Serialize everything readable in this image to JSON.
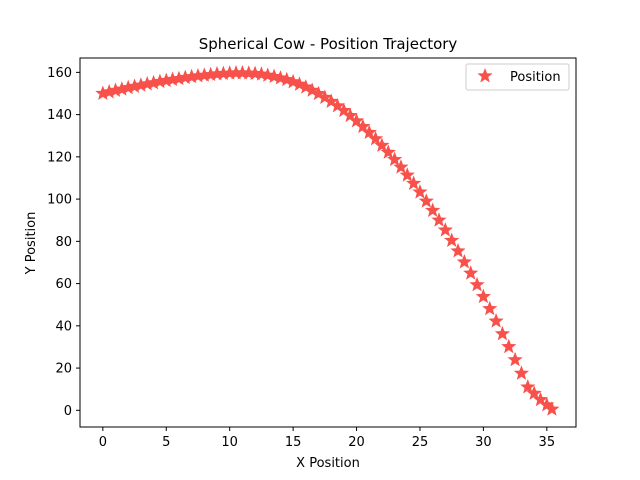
{
  "chart_data": {
    "type": "scatter",
    "title": "Spherical Cow - Position Trajectory",
    "xlabel": "X Position",
    "ylabel": "Y Position",
    "xlim": [
      -1.8,
      37.3
    ],
    "ylim": [
      -7.9,
      166.8
    ],
    "xticks": [
      0,
      5,
      10,
      15,
      20,
      25,
      30,
      35
    ],
    "yticks": [
      0,
      20,
      40,
      60,
      80,
      100,
      120,
      140,
      160
    ],
    "grid": false,
    "legend_position": "top-right",
    "marker": "star",
    "series": [
      {
        "name": "Position",
        "color": "#f8514b",
        "points": [
          [
            0.0,
            150.0
          ],
          [
            0.5,
            150.7
          ],
          [
            1.0,
            151.4
          ],
          [
            1.5,
            152.0
          ],
          [
            2.0,
            152.7
          ],
          [
            2.5,
            153.3
          ],
          [
            3.0,
            153.9
          ],
          [
            3.5,
            154.5
          ],
          [
            4.0,
            155.0
          ],
          [
            4.5,
            155.6
          ],
          [
            5.0,
            156.1
          ],
          [
            5.5,
            156.6
          ],
          [
            6.0,
            157.0
          ],
          [
            6.5,
            157.5
          ],
          [
            7.0,
            157.9
          ],
          [
            7.5,
            158.3
          ],
          [
            8.0,
            158.6
          ],
          [
            8.5,
            158.9
          ],
          [
            9.0,
            159.2
          ],
          [
            9.5,
            159.4
          ],
          [
            10.0,
            159.6
          ],
          [
            10.5,
            159.7
          ],
          [
            11.0,
            159.7
          ],
          [
            11.5,
            159.6
          ],
          [
            12.0,
            159.4
          ],
          [
            12.5,
            159.1
          ],
          [
            13.0,
            158.6
          ],
          [
            13.5,
            158.0
          ],
          [
            14.0,
            157.3
          ],
          [
            14.5,
            156.5
          ],
          [
            15.0,
            155.5
          ],
          [
            15.5,
            154.3
          ],
          [
            16.0,
            153.0
          ],
          [
            16.5,
            151.5
          ],
          [
            17.0,
            149.9
          ],
          [
            17.5,
            148.1
          ],
          [
            18.0,
            146.2
          ],
          [
            18.5,
            144.1
          ],
          [
            19.0,
            141.9
          ],
          [
            19.5,
            139.5
          ],
          [
            20.0,
            137.0
          ],
          [
            20.5,
            134.3
          ],
          [
            21.0,
            131.5
          ],
          [
            21.5,
            128.5
          ],
          [
            22.0,
            125.4
          ],
          [
            22.5,
            122.1
          ],
          [
            23.0,
            118.7
          ],
          [
            23.5,
            115.1
          ],
          [
            24.0,
            111.3
          ],
          [
            24.5,
            107.4
          ],
          [
            25.0,
            103.3
          ],
          [
            25.5,
            99.0
          ],
          [
            26.0,
            94.6
          ],
          [
            26.5,
            90.0
          ],
          [
            27.0,
            85.3
          ],
          [
            27.5,
            80.4
          ],
          [
            28.0,
            75.4
          ],
          [
            28.5,
            70.2
          ],
          [
            29.0,
            64.9
          ],
          [
            29.5,
            59.4
          ],
          [
            30.0,
            53.8
          ],
          [
            30.5,
            48.1
          ],
          [
            31.0,
            42.2
          ],
          [
            31.5,
            36.2
          ],
          [
            32.0,
            30.1
          ],
          [
            32.5,
            23.9
          ],
          [
            33.0,
            17.5
          ],
          [
            33.5,
            11.0
          ],
          [
            34.0,
            8.0
          ],
          [
            34.5,
            5.0
          ],
          [
            35.0,
            2.5
          ],
          [
            35.4,
            0.5
          ]
        ]
      }
    ]
  }
}
